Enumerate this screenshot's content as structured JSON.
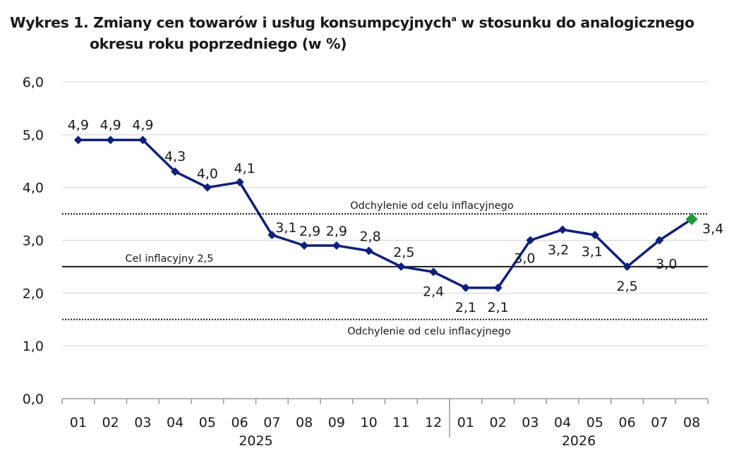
{
  "chart_data": {
    "type": "line",
    "title_main": "Wykres 1. Zmiany cen towarów i usług konsumpcyjnych",
    "title_sup": "a",
    "title_rest": " w stosunku do analogicznego",
    "title_line2": "okresu roku poprzedniego (w %)",
    "categories": [
      "01",
      "02",
      "03",
      "04",
      "05",
      "06",
      "07",
      "08",
      "09",
      "10",
      "11",
      "12",
      "01",
      "02",
      "03",
      "04",
      "05",
      "06",
      "07",
      "08"
    ],
    "year_labels": [
      "2025",
      "2026"
    ],
    "values": [
      4.9,
      4.9,
      4.9,
      4.3,
      4.0,
      4.1,
      3.1,
      2.9,
      2.9,
      2.8,
      2.5,
      2.4,
      2.1,
      2.1,
      3.0,
      3.2,
      3.1,
      2.5,
      3.0,
      3.4
    ],
    "data_labels": [
      "4,9",
      "4,9",
      "4,9",
      "4,3",
      "4,0",
      "4,1",
      "3,1",
      "2,9",
      "2,9",
      "2,8",
      "2,5",
      "2,4",
      "2,1",
      "2,1",
      "3,0",
      "3,2",
      "3,1",
      "2,5",
      "3,0",
      "3,4"
    ],
    "y_ticks": [
      "0,0",
      "1,0",
      "2,0",
      "3,0",
      "4,0",
      "5,0",
      "6,0"
    ],
    "ylim": [
      0,
      6
    ],
    "grid": true,
    "reference_lines": [
      {
        "value": 2.5,
        "label": "Cel inflacyjny 2,5",
        "style": "solid"
      },
      {
        "value": 3.5,
        "label": "Odchylenie od celu inflacyjnego",
        "style": "dotted"
      },
      {
        "value": 1.5,
        "label": "Odchylenie od celu inflacyjnego",
        "style": "dotted"
      }
    ],
    "line_color": "#0d1f7a",
    "highlight_color": "#1f9a3a",
    "highlight_index": 19
  }
}
